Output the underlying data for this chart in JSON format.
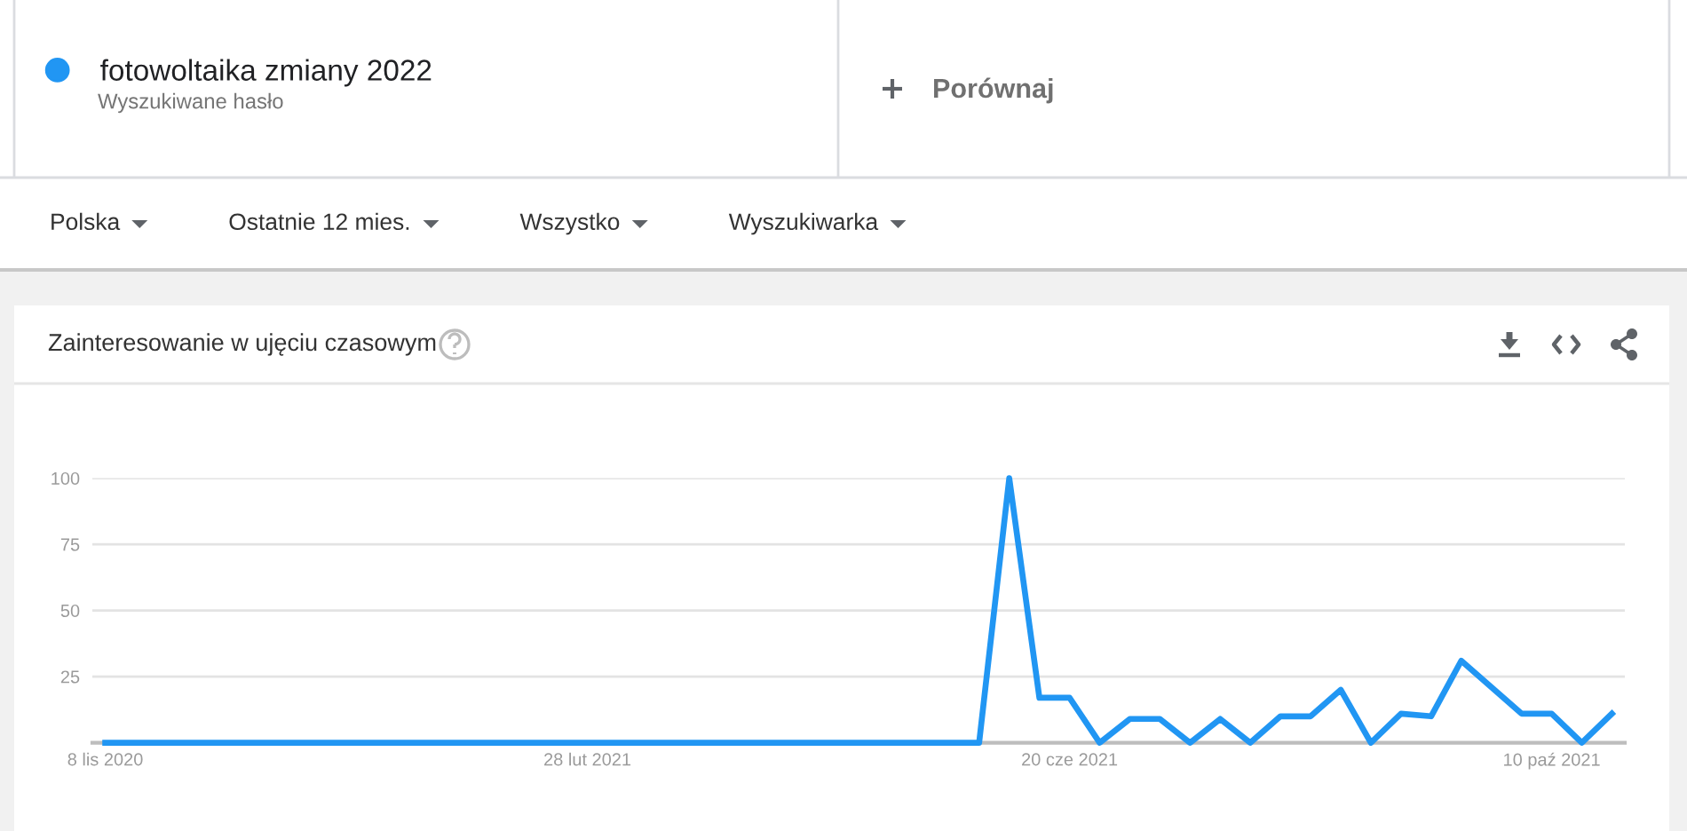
{
  "chart_data": {
    "type": "line",
    "title": "Zainteresowanie w ujęciu czasowym",
    "x": [
      "2020-11-08",
      "2020-11-15",
      "2020-11-22",
      "2020-11-29",
      "2020-12-06",
      "2020-12-13",
      "2020-12-20",
      "2020-12-27",
      "2021-01-03",
      "2021-01-10",
      "2021-01-17",
      "2021-01-24",
      "2021-01-31",
      "2021-02-07",
      "2021-02-14",
      "2021-02-21",
      "2021-02-28",
      "2021-03-07",
      "2021-03-14",
      "2021-03-21",
      "2021-03-28",
      "2021-04-04",
      "2021-04-11",
      "2021-04-18",
      "2021-04-25",
      "2021-05-02",
      "2021-05-09",
      "2021-05-16",
      "2021-05-23",
      "2021-05-30",
      "2021-06-06",
      "2021-06-13",
      "2021-06-20",
      "2021-06-27",
      "2021-07-04",
      "2021-07-11",
      "2021-07-18",
      "2021-07-25",
      "2021-08-01",
      "2021-08-08",
      "2021-08-15",
      "2021-08-22",
      "2021-08-29",
      "2021-09-05",
      "2021-09-12",
      "2021-09-19",
      "2021-09-26",
      "2021-10-03",
      "2021-10-10",
      "2021-10-17",
      "2021-10-24"
    ],
    "series": [
      {
        "name": "fotowoltaika zmiany 2022",
        "color": "#2196f3",
        "values": [
          0,
          0,
          0,
          0,
          0,
          0,
          0,
          0,
          0,
          0,
          0,
          0,
          0,
          0,
          0,
          0,
          0,
          0,
          0,
          0,
          0,
          0,
          0,
          0,
          0,
          0,
          0,
          0,
          0,
          0,
          100,
          17,
          17,
          0,
          9,
          9,
          0,
          9,
          0,
          10,
          10,
          20,
          0,
          11,
          10,
          31,
          21,
          11,
          11,
          0,
          11
        ]
      }
    ],
    "xlim": [
      "2020-11-05",
      "2021-10-27"
    ],
    "xticks": [
      {
        "value": "2020-11-08",
        "label": "8 lis 2020"
      },
      {
        "value": "2021-02-28",
        "label": "28 lut 2021"
      },
      {
        "value": "2021-06-20",
        "label": "20 cze 2021"
      },
      {
        "value": "2021-10-10",
        "label": "10 paź 2021"
      }
    ],
    "ylim": [
      0,
      100
    ],
    "yticks": [
      25,
      50,
      75,
      100
    ],
    "grid": "y",
    "legend": "top left",
    "line_style": "solid",
    "annotations": [
      "Wyszukiwane hasło",
      "Porównaj",
      "Polska",
      "Ostatnie 12 mies.",
      "Wszystko",
      "Wyszukiwarka"
    ]
  }
}
